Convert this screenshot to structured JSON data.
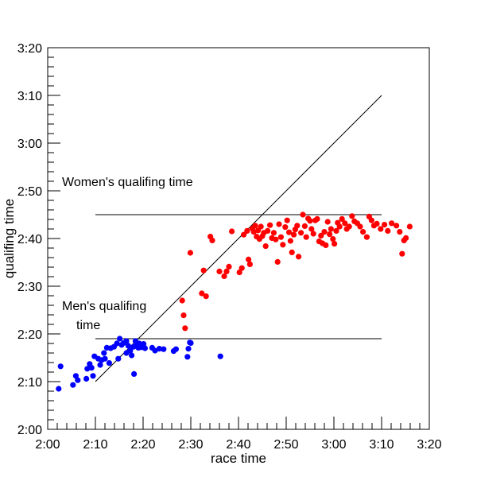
{
  "chart_data": {
    "type": "scatter",
    "xlabel": "race time",
    "ylabel": "qualifing time",
    "x_unit": "minutes",
    "y_unit": "minutes",
    "xlim": [
      120,
      200
    ],
    "ylim": [
      120,
      200
    ],
    "x_ticks": [
      {
        "value": 120,
        "label": "2:00"
      },
      {
        "value": 130,
        "label": "2:10"
      },
      {
        "value": 140,
        "label": "2:20"
      },
      {
        "value": 150,
        "label": "2:30"
      },
      {
        "value": 160,
        "label": "2:40"
      },
      {
        "value": 170,
        "label": "2:50"
      },
      {
        "value": 180,
        "label": "3:00"
      },
      {
        "value": 190,
        "label": "3:10"
      },
      {
        "value": 200,
        "label": "3:20"
      }
    ],
    "y_ticks": [
      {
        "value": 120,
        "label": "2:00"
      },
      {
        "value": 130,
        "label": "2:10"
      },
      {
        "value": 140,
        "label": "2:20"
      },
      {
        "value": 150,
        "label": "2:30"
      },
      {
        "value": 160,
        "label": "2:40"
      },
      {
        "value": 170,
        "label": "2:50"
      },
      {
        "value": 180,
        "label": "3:00"
      },
      {
        "value": 190,
        "label": "3:10"
      },
      {
        "value": 200,
        "label": "3:20"
      }
    ],
    "grid": false,
    "reference_lines": [
      {
        "kind": "diagonal",
        "from": [
          130,
          130
        ],
        "to": [
          190,
          190
        ]
      },
      {
        "kind": "horizontal",
        "y": 165,
        "x_from": 130,
        "x_to": 190
      },
      {
        "kind": "horizontal",
        "y": 139,
        "x_from": 130,
        "x_to": 190
      }
    ],
    "annotations": [
      {
        "text": "Women's qualifing time",
        "x": 123,
        "y": 171
      },
      {
        "text": "Men's qualifing",
        "x": 123,
        "y": 145
      },
      {
        "text": "time",
        "x": 126,
        "y": 141
      }
    ],
    "series": [
      {
        "color": "#0000ff",
        "points": [
          [
            122.3,
            128.5
          ],
          [
            122.7,
            133.2
          ],
          [
            125.3,
            129.3
          ],
          [
            125.9,
            131.2
          ],
          [
            126.3,
            130.3
          ],
          [
            128.1,
            130.6
          ],
          [
            128.3,
            132.7
          ],
          [
            128.8,
            133.7
          ],
          [
            129.2,
            132.9
          ],
          [
            129.5,
            131.2
          ],
          [
            129.8,
            135.3
          ],
          [
            130.6,
            134.8
          ],
          [
            131.0,
            133.5
          ],
          [
            131.3,
            134.5
          ],
          [
            131.8,
            136.0
          ],
          [
            132.0,
            134.8
          ],
          [
            132.4,
            137.1
          ],
          [
            132.9,
            133.9
          ],
          [
            133.2,
            137.0
          ],
          [
            133.9,
            137.3
          ],
          [
            134.5,
            138.0
          ],
          [
            134.8,
            134.8
          ],
          [
            135.1,
            139.0
          ],
          [
            135.5,
            137.7
          ],
          [
            135.9,
            138.1
          ],
          [
            136.5,
            136.0
          ],
          [
            136.5,
            138.5
          ],
          [
            136.9,
            137.5
          ],
          [
            137.3,
            136.5
          ],
          [
            137.6,
            135.5
          ],
          [
            138.0,
            137.3
          ],
          [
            138.1,
            131.6
          ],
          [
            138.4,
            138.5
          ],
          [
            138.7,
            137.9
          ],
          [
            139.0,
            137.1
          ],
          [
            139.2,
            138.0
          ],
          [
            139.6,
            137.2
          ],
          [
            140.1,
            137.9
          ],
          [
            140.4,
            137.0
          ],
          [
            141.9,
            137.1
          ],
          [
            142.5,
            136.5
          ],
          [
            143.4,
            136.9
          ],
          [
            144.3,
            136.8
          ],
          [
            146.4,
            136.4
          ],
          [
            146.9,
            136.8
          ],
          [
            149.3,
            135.2
          ],
          [
            149.8,
            138.2
          ],
          [
            149.5,
            136.9
          ],
          [
            150.0,
            138.1
          ],
          [
            156.2,
            135.3
          ]
        ]
      },
      {
        "color": "#ff0000",
        "points": [
          [
            148.2,
            147.0
          ],
          [
            148.5,
            143.9
          ],
          [
            148.8,
            141.2
          ],
          [
            149.9,
            157.0
          ],
          [
            152.3,
            148.5
          ],
          [
            152.7,
            153.3
          ],
          [
            153.2,
            147.9
          ],
          [
            154.1,
            160.4
          ],
          [
            154.5,
            159.6
          ],
          [
            156.0,
            153.1
          ],
          [
            157.0,
            152.1
          ],
          [
            157.5,
            153.1
          ],
          [
            158.0,
            154.1
          ],
          [
            158.6,
            161.5
          ],
          [
            160.2,
            152.9
          ],
          [
            160.7,
            153.8
          ],
          [
            161.1,
            160.8
          ],
          [
            161.8,
            161.6
          ],
          [
            162.1,
            155.6
          ],
          [
            162.4,
            154.6
          ],
          [
            162.9,
            162.1
          ],
          [
            163.2,
            161.4
          ],
          [
            163.5,
            162.7
          ],
          [
            163.8,
            160.4
          ],
          [
            164.1,
            161.7
          ],
          [
            164.4,
            159.9
          ],
          [
            164.7,
            162.5
          ],
          [
            165.0,
            160.5
          ],
          [
            165.3,
            161.2
          ],
          [
            165.7,
            158.4
          ],
          [
            166.1,
            161.6
          ],
          [
            166.6,
            162.8
          ],
          [
            167.0,
            160.1
          ],
          [
            167.4,
            161.2
          ],
          [
            167.8,
            159.8
          ],
          [
            168.2,
            155.1
          ],
          [
            168.5,
            163.0
          ],
          [
            168.9,
            160.3
          ],
          [
            169.3,
            158.7
          ],
          [
            169.8,
            162.4
          ],
          [
            170.2,
            163.8
          ],
          [
            170.6,
            161.3
          ],
          [
            170.9,
            159.5
          ],
          [
            171.2,
            157.1
          ],
          [
            171.6,
            160.8
          ],
          [
            171.9,
            161.9
          ],
          [
            172.3,
            162.7
          ],
          [
            172.6,
            156.2
          ],
          [
            173.1,
            161.2
          ],
          [
            173.5,
            165.0
          ],
          [
            173.9,
            162.6
          ],
          [
            174.2,
            160.3
          ],
          [
            174.6,
            164.2
          ],
          [
            175.0,
            163.7
          ],
          [
            175.3,
            162.0
          ],
          [
            175.7,
            161.0
          ],
          [
            176.1,
            163.8
          ],
          [
            176.5,
            164.1
          ],
          [
            176.9,
            159.4
          ],
          [
            177.3,
            160.6
          ],
          [
            177.6,
            159.0
          ],
          [
            178.0,
            161.4
          ],
          [
            178.3,
            158.6
          ],
          [
            178.7,
            163.5
          ],
          [
            179.1,
            160.9
          ],
          [
            179.4,
            162.0
          ],
          [
            179.8,
            159.9
          ],
          [
            180.1,
            158.9
          ],
          [
            180.5,
            161.6
          ],
          [
            180.8,
            163.3
          ],
          [
            181.2,
            162.5
          ],
          [
            181.7,
            164.1
          ],
          [
            182.3,
            163.2
          ],
          [
            182.7,
            162.0
          ],
          [
            183.2,
            162.5
          ],
          [
            183.8,
            164.7
          ],
          [
            184.3,
            163.6
          ],
          [
            184.9,
            163.2
          ],
          [
            185.5,
            162.5
          ],
          [
            186.1,
            161.4
          ],
          [
            186.9,
            160.3
          ],
          [
            187.4,
            164.6
          ],
          [
            187.9,
            163.8
          ],
          [
            188.4,
            162.7
          ],
          [
            189.0,
            163.1
          ],
          [
            189.8,
            162.0
          ],
          [
            190.6,
            162.9
          ],
          [
            191.3,
            161.6
          ],
          [
            192.1,
            163.2
          ],
          [
            193.1,
            162.7
          ],
          [
            193.8,
            161.4
          ],
          [
            194.3,
            156.8
          ],
          [
            194.7,
            159.6
          ],
          [
            195.1,
            160.1
          ],
          [
            195.9,
            162.5
          ]
        ]
      }
    ]
  }
}
